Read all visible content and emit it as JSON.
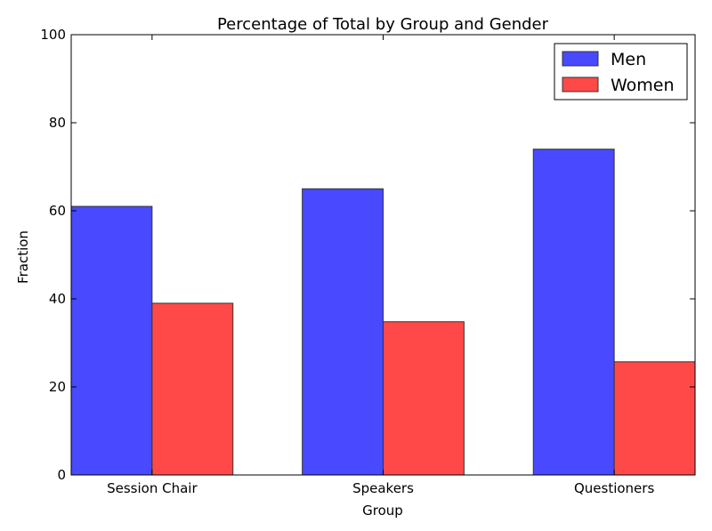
{
  "chart_data": {
    "type": "bar",
    "title": "Percentage of Total by Group and Gender",
    "xlabel": "Group",
    "ylabel": "Fraction",
    "categories": [
      "Session Chair",
      "Speakers",
      "Questioners"
    ],
    "series": [
      {
        "name": "Men",
        "values": [
          61,
          65,
          74
        ],
        "color": "#4949ff"
      },
      {
        "name": "Women",
        "values": [
          39,
          34.8,
          25.7
        ],
        "color": "#ff4949"
      }
    ],
    "ylim": [
      0,
      100
    ],
    "yticks": [
      0,
      20,
      40,
      60,
      80,
      100
    ],
    "grid": false,
    "legend_position": "top-right"
  }
}
